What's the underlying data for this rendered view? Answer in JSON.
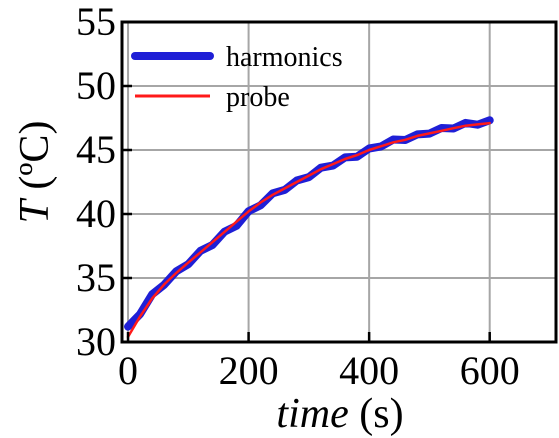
{
  "chart_data": {
    "type": "line",
    "xlabel_italic": "time",
    "xlabel_unit": "(s)",
    "ylabel_italic": "T",
    "ylabel_unit": "(ºC)",
    "xlim": [
      -10,
      710
    ],
    "ylim": [
      30,
      55
    ],
    "xticks": [
      0,
      200,
      400,
      600
    ],
    "yticks": [
      30,
      35,
      40,
      45,
      50,
      55
    ],
    "grid": true,
    "legend_position": "top-left",
    "series": [
      {
        "name": "harmonics",
        "color": "#1f1fd6",
        "style": "thick-noisy",
        "x": [
          0,
          20,
          40,
          60,
          80,
          100,
          120,
          140,
          160,
          180,
          200,
          220,
          240,
          260,
          280,
          300,
          320,
          340,
          360,
          380,
          400,
          420,
          440,
          460,
          480,
          500,
          520,
          540,
          560,
          580,
          600
        ],
        "y": [
          31.2,
          32.3,
          33.6,
          34.6,
          35.4,
          36.2,
          37.0,
          37.7,
          38.5,
          39.2,
          40.1,
          40.8,
          41.5,
          42.0,
          42.5,
          43.0,
          43.5,
          43.9,
          44.3,
          44.6,
          45.0,
          45.4,
          45.7,
          45.9,
          46.1,
          46.4,
          46.6,
          46.8,
          47.0,
          47.1,
          47.2
        ]
      },
      {
        "name": "probe",
        "color": "#ff1a1a",
        "style": "thin",
        "x": [
          0,
          20,
          40,
          60,
          80,
          100,
          120,
          140,
          160,
          180,
          200,
          220,
          240,
          260,
          280,
          300,
          320,
          340,
          360,
          380,
          400,
          420,
          440,
          460,
          480,
          500,
          520,
          540,
          560,
          580,
          600
        ],
        "y": [
          30.4,
          32.0,
          33.4,
          34.5,
          35.4,
          36.2,
          37.0,
          37.8,
          38.6,
          39.4,
          40.2,
          40.9,
          41.5,
          42.0,
          42.5,
          43.0,
          43.5,
          43.9,
          44.3,
          44.6,
          45.0,
          45.3,
          45.6,
          45.8,
          46.1,
          46.3,
          46.5,
          46.7,
          46.9,
          47.0,
          47.1
        ]
      }
    ]
  }
}
